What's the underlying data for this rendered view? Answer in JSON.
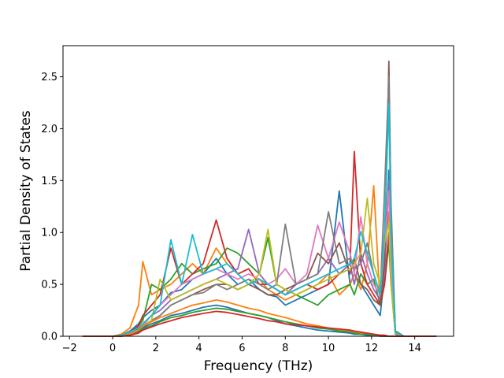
{
  "chart_data": {
    "type": "line",
    "title": "",
    "xlabel": "Frequency (THz)",
    "ylabel": "Partial Density of States",
    "xlim": [
      -2.3,
      15.8
    ],
    "ylim": [
      0.0,
      2.8
    ],
    "xticks": [
      "−2",
      "0",
      "2",
      "4",
      "6",
      "8",
      "10",
      "12",
      "14"
    ],
    "xtick_values": [
      -2,
      0,
      2,
      4,
      6,
      8,
      10,
      12,
      14
    ],
    "yticks": [
      "0.0",
      "0.5",
      "1.0",
      "1.5",
      "2.0",
      "2.5"
    ],
    "ytick_values": [
      0.0,
      0.5,
      1.0,
      1.5,
      2.0,
      2.5
    ],
    "grid": false,
    "legend": "none",
    "series_colors": [
      "#1f77b4",
      "#ff7f0e",
      "#2ca02c",
      "#d62728",
      "#9467bd",
      "#8c564b",
      "#e377c2",
      "#7f7f7f",
      "#bcbd22",
      "#17becf"
    ],
    "x": [
      -1.4,
      -0.5,
      0.0,
      0.4,
      0.8,
      1.2,
      1.4,
      1.8,
      2.2,
      2.7,
      3.2,
      3.7,
      4.2,
      4.8,
      5.3,
      5.8,
      6.3,
      6.8,
      7.2,
      7.6,
      8.0,
      8.5,
      9.0,
      9.5,
      10.0,
      10.5,
      11.0,
      11.2,
      11.5,
      11.8,
      12.1,
      12.4,
      12.6,
      12.8,
      12.9,
      13.1,
      13.5,
      14.0,
      15.0
    ],
    "series": [
      {
        "color": "#1f77b4",
        "values": [
          0,
          0,
          0,
          0.01,
          0.05,
          0.12,
          0.18,
          0.25,
          0.3,
          0.42,
          0.45,
          0.55,
          0.6,
          0.75,
          0.6,
          0.5,
          0.55,
          0.45,
          0.4,
          0.38,
          0.3,
          0.35,
          0.4,
          0.45,
          0.5,
          1.4,
          0.5,
          0.6,
          0.5,
          0.4,
          0.3,
          0.2,
          0.6,
          1.6,
          0.9,
          0.05,
          0,
          0,
          0
        ]
      },
      {
        "color": "#ff7f0e",
        "values": [
          0,
          0,
          0,
          0.02,
          0.08,
          0.3,
          0.72,
          0.4,
          0.45,
          0.5,
          0.6,
          0.7,
          0.6,
          0.85,
          0.7,
          0.6,
          0.5,
          0.55,
          0.45,
          0.4,
          0.35,
          0.4,
          0.45,
          0.5,
          0.6,
          0.4,
          0.5,
          0.6,
          0.45,
          0.7,
          1.45,
          0.3,
          0.8,
          1.2,
          0.6,
          0.02,
          0,
          0,
          0
        ]
      },
      {
        "color": "#2ca02c",
        "values": [
          0,
          0,
          0,
          0.01,
          0.04,
          0.1,
          0.15,
          0.5,
          0.45,
          0.55,
          0.7,
          0.6,
          0.65,
          0.7,
          0.85,
          0.8,
          0.7,
          0.6,
          0.95,
          0.5,
          0.45,
          0.4,
          0.35,
          0.3,
          0.4,
          0.45,
          0.5,
          0.4,
          0.6,
          0.5,
          0.55,
          0.3,
          0.5,
          0.9,
          0.5,
          0.03,
          0,
          0,
          0
        ]
      },
      {
        "color": "#d62728",
        "values": [
          0,
          0,
          0,
          0.01,
          0.03,
          0.1,
          0.2,
          0.3,
          0.4,
          0.85,
          0.5,
          0.6,
          0.7,
          1.12,
          0.75,
          0.6,
          0.65,
          0.5,
          0.5,
          0.45,
          0.4,
          0.45,
          0.5,
          0.45,
          0.5,
          0.6,
          0.7,
          1.78,
          0.7,
          0.5,
          0.4,
          0.3,
          0.5,
          1.0,
          0.6,
          0.03,
          0,
          0,
          0
        ]
      },
      {
        "color": "#9467bd",
        "values": [
          0,
          0,
          0,
          0.01,
          0.02,
          0.08,
          0.12,
          0.2,
          0.25,
          0.35,
          0.4,
          0.45,
          0.5,
          0.55,
          0.6,
          0.65,
          1.03,
          0.6,
          0.5,
          0.45,
          0.4,
          0.5,
          0.55,
          0.6,
          0.75,
          0.6,
          0.7,
          0.5,
          0.8,
          0.6,
          0.45,
          0.35,
          0.6,
          1.5,
          0.8,
          0.02,
          0,
          0,
          0
        ]
      },
      {
        "color": "#8c564b",
        "values": [
          0,
          0,
          0,
          0.01,
          0.03,
          0.07,
          0.1,
          0.15,
          0.2,
          0.3,
          0.35,
          0.4,
          0.45,
          0.5,
          0.5,
          0.45,
          0.5,
          0.45,
          0.4,
          0.4,
          0.45,
          0.5,
          0.55,
          0.8,
          0.7,
          0.9,
          0.6,
          0.75,
          0.5,
          0.45,
          0.35,
          0.3,
          0.7,
          2.65,
          1.2,
          0.05,
          0,
          0,
          0
        ]
      },
      {
        "color": "#e377c2",
        "values": [
          0,
          0,
          0,
          0.01,
          0.03,
          0.06,
          0.1,
          0.2,
          0.3,
          0.4,
          0.5,
          0.55,
          0.6,
          0.65,
          0.6,
          0.55,
          0.6,
          0.55,
          0.5,
          0.55,
          0.65,
          0.5,
          0.6,
          1.07,
          0.75,
          1.1,
          0.8,
          0.6,
          1.15,
          0.7,
          0.5,
          0.4,
          0.9,
          1.4,
          0.7,
          0.03,
          0,
          0,
          0
        ]
      },
      {
        "color": "#7f7f7f",
        "values": [
          0,
          0,
          0,
          0.01,
          0.02,
          0.05,
          0.08,
          0.15,
          0.2,
          0.3,
          0.35,
          0.4,
          0.42,
          0.5,
          0.45,
          0.5,
          0.55,
          0.5,
          0.45,
          0.5,
          1.08,
          0.5,
          0.55,
          0.6,
          1.2,
          0.7,
          0.75,
          0.65,
          0.7,
          0.9,
          0.6,
          0.4,
          1.4,
          2.5,
          1.3,
          0.04,
          0,
          0,
          0
        ]
      },
      {
        "color": "#bcbd22",
        "values": [
          0,
          0,
          0,
          0.01,
          0.02,
          0.05,
          0.1,
          0.15,
          0.55,
          0.35,
          0.4,
          0.45,
          0.5,
          0.55,
          0.5,
          0.45,
          0.5,
          0.6,
          1.03,
          0.5,
          0.45,
          0.4,
          0.45,
          0.5,
          0.55,
          0.6,
          0.65,
          0.7,
          0.8,
          1.33,
          0.7,
          0.5,
          0.9,
          1.1,
          0.5,
          0.03,
          0,
          0,
          0
        ]
      },
      {
        "color": "#17becf",
        "values": [
          0,
          0,
          0,
          0.01,
          0.04,
          0.08,
          0.12,
          0.2,
          0.3,
          0.93,
          0.5,
          0.98,
          0.6,
          0.65,
          0.7,
          0.6,
          0.5,
          0.55,
          0.5,
          0.45,
          0.4,
          0.45,
          0.5,
          0.55,
          0.6,
          0.65,
          0.7,
          0.75,
          1.01,
          0.8,
          0.6,
          0.4,
          1.0,
          2.24,
          1.0,
          0.04,
          0,
          0,
          0
        ]
      },
      {
        "color": "#1f77b4",
        "values": [
          0,
          0,
          0,
          0,
          0.02,
          0.05,
          0.08,
          0.12,
          0.15,
          0.2,
          0.22,
          0.25,
          0.28,
          0.3,
          0.28,
          0.25,
          0.22,
          0.2,
          0.18,
          0.15,
          0.12,
          0.1,
          0.08,
          0.06,
          0.05,
          0.04,
          0.03,
          0.02,
          0.02,
          0.01,
          0.01,
          0,
          0,
          0,
          0,
          0,
          0,
          0,
          0
        ]
      },
      {
        "color": "#ff7f0e",
        "values": [
          0,
          0,
          0,
          0,
          0.02,
          0.06,
          0.1,
          0.14,
          0.18,
          0.22,
          0.26,
          0.3,
          0.32,
          0.35,
          0.33,
          0.3,
          0.27,
          0.25,
          0.22,
          0.2,
          0.18,
          0.15,
          0.12,
          0.1,
          0.08,
          0.06,
          0.05,
          0.04,
          0.03,
          0.02,
          0.02,
          0.01,
          0.01,
          0,
          0,
          0,
          0,
          0,
          0
        ]
      },
      {
        "color": "#2ca02c",
        "values": [
          0,
          0,
          0,
          0,
          0.01,
          0.04,
          0.07,
          0.1,
          0.14,
          0.18,
          0.2,
          0.23,
          0.25,
          0.27,
          0.26,
          0.24,
          0.22,
          0.2,
          0.18,
          0.16,
          0.14,
          0.12,
          0.1,
          0.08,
          0.07,
          0.05,
          0.04,
          0.03,
          0.02,
          0.02,
          0.01,
          0.01,
          0,
          0,
          0,
          0,
          0,
          0,
          0
        ]
      },
      {
        "color": "#d62728",
        "values": [
          0,
          0,
          0,
          0,
          0.01,
          0.03,
          0.06,
          0.09,
          0.12,
          0.15,
          0.18,
          0.2,
          0.22,
          0.24,
          0.23,
          0.21,
          0.19,
          0.17,
          0.15,
          0.14,
          0.12,
          0.11,
          0.1,
          0.09,
          0.08,
          0.07,
          0.06,
          0.05,
          0.04,
          0.03,
          0.02,
          0.01,
          0.01,
          0,
          0,
          0,
          0,
          0,
          0
        ]
      }
    ]
  }
}
